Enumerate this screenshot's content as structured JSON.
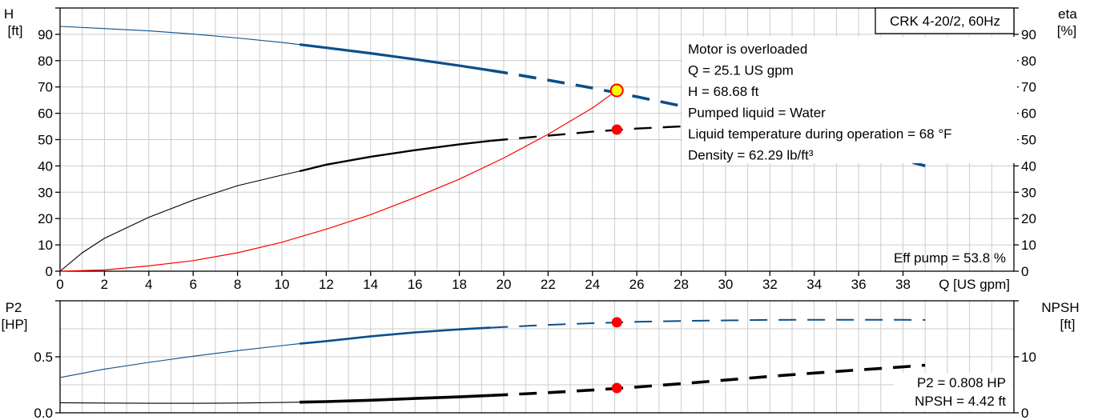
{
  "chart_data": [
    {
      "type": "line",
      "title": "CRK 4-20/2, 60Hz",
      "xlabel": "Q [US gpm]",
      "ylabel": "H\n[ft]",
      "ylabel_right": "eta\n[%]",
      "xlim": [
        0,
        43
      ],
      "ylim": [
        0,
        100
      ],
      "ylim_right": [
        0,
        100
      ],
      "x_ticks": [
        0,
        2,
        4,
        6,
        8,
        10,
        12,
        14,
        16,
        18,
        20,
        22,
        24,
        26,
        28,
        30,
        32,
        34,
        36,
        38
      ],
      "y_ticks": [
        0,
        10,
        20,
        30,
        40,
        50,
        60,
        70,
        80,
        90
      ],
      "y_ticks_right": [
        0,
        10,
        20,
        30,
        40,
        50,
        60,
        70,
        80,
        90
      ],
      "grid": true,
      "annotations": [
        "Motor is overloaded",
        "Q = 25.1 US gpm",
        "H = 68.68 ft",
        "Pumped liquid = Water",
        "Liquid temperature during operation = 68 °F",
        "Density = 62.29 lb/ft³"
      ],
      "eff_note": "Eff pump = 53.8 %",
      "series": [
        {
          "color": "#0b4f8a",
          "axis": "left",
          "x": [
            0,
            2,
            4,
            6,
            8,
            10,
            10.8,
            12,
            14,
            16,
            18,
            19.4,
            20,
            22,
            24,
            26,
            28,
            30,
            32,
            34,
            36,
            38,
            39
          ],
          "y": [
            93,
            92.2,
            91.3,
            90.1,
            88.6,
            86.9,
            86.1,
            84.9,
            82.8,
            80.5,
            78.1,
            76.3,
            75.5,
            72.6,
            69.6,
            66.3,
            62.8,
            59.1,
            55.2,
            51.1,
            46.8,
            42.3,
            40
          ]
        },
        {
          "color": "#000000",
          "axis": "right",
          "x": [
            0,
            1,
            2,
            4,
            6,
            8,
            10,
            10.8,
            12,
            14,
            16,
            18,
            19.4,
            20,
            22,
            24,
            26,
            28,
            30,
            32,
            34,
            36,
            38,
            39
          ],
          "y": [
            0,
            7,
            12.5,
            20.5,
            27,
            32.5,
            36.5,
            38,
            40.5,
            43.5,
            46,
            48.2,
            49.5,
            50,
            51.5,
            53,
            54.2,
            55,
            55.3,
            54.8,
            53.8,
            52.2,
            50,
            48
          ]
        },
        {
          "color": "#ff0000",
          "axis": "left",
          "x": [
            0,
            2,
            4,
            6,
            8,
            10,
            12,
            14,
            16,
            18,
            20,
            22,
            24,
            25.1
          ],
          "y": [
            0,
            0.5,
            2,
            4,
            7,
            11,
            16,
            21.5,
            28,
            35,
            43,
            52,
            62,
            68.68
          ]
        }
      ],
      "operating_points": [
        {
          "x": 25.1,
          "y": 68.68,
          "ring": true
        },
        {
          "x": 25.1,
          "y": 53.8,
          "ring": false
        }
      ]
    },
    {
      "type": "line",
      "ylabel": "P2\n[HP]",
      "ylabel_right": "NPSH\n[ft]",
      "xlim": [
        0,
        43
      ],
      "ylim": [
        0,
        1.0
      ],
      "ylim_right": [
        0,
        20
      ],
      "y_ticks_labeled": [
        0.0,
        0.5
      ],
      "y_tick_labels": [
        "0.0",
        "0.5"
      ],
      "y_tick_unlabeled": 1.0,
      "y_ticks_right_labeled": [
        0,
        10
      ],
      "y_ticks_right_unlabeled": 20,
      "grid": true,
      "annotations": [
        "P2 = 0.808 HP",
        "NPSH = 4.42 ft"
      ],
      "series": [
        {
          "color": "#0b4f8a",
          "axis": "left",
          "x": [
            0,
            2,
            4,
            6,
            8,
            10,
            10.8,
            12,
            14,
            16,
            18,
            19.4,
            20,
            22,
            24,
            26,
            28,
            30,
            32,
            34,
            36,
            38,
            39
          ],
          "y": [
            0.315,
            0.39,
            0.45,
            0.505,
            0.555,
            0.6,
            0.617,
            0.64,
            0.683,
            0.718,
            0.745,
            0.76,
            0.766,
            0.785,
            0.8,
            0.812,
            0.82,
            0.825,
            0.829,
            0.831,
            0.831,
            0.83,
            0.829
          ]
        },
        {
          "color": "#000000",
          "axis": "right",
          "x": [
            0,
            2,
            4,
            6,
            8,
            10,
            10.8,
            12,
            14,
            16,
            18,
            19.4,
            20,
            22,
            24,
            26,
            28,
            30,
            32,
            34,
            36,
            38,
            39
          ],
          "y": [
            1.8,
            1.75,
            1.7,
            1.7,
            1.75,
            1.85,
            1.9,
            2.0,
            2.25,
            2.55,
            2.85,
            3.1,
            3.2,
            3.6,
            4.05,
            4.6,
            5.2,
            5.85,
            6.5,
            7.1,
            7.65,
            8.2,
            8.5
          ]
        }
      ],
      "operating_points": [
        {
          "x": 25.1,
          "y": 0.808,
          "axis": "left"
        },
        {
          "x": 25.1,
          "y": 4.42,
          "axis": "right"
        }
      ]
    }
  ]
}
